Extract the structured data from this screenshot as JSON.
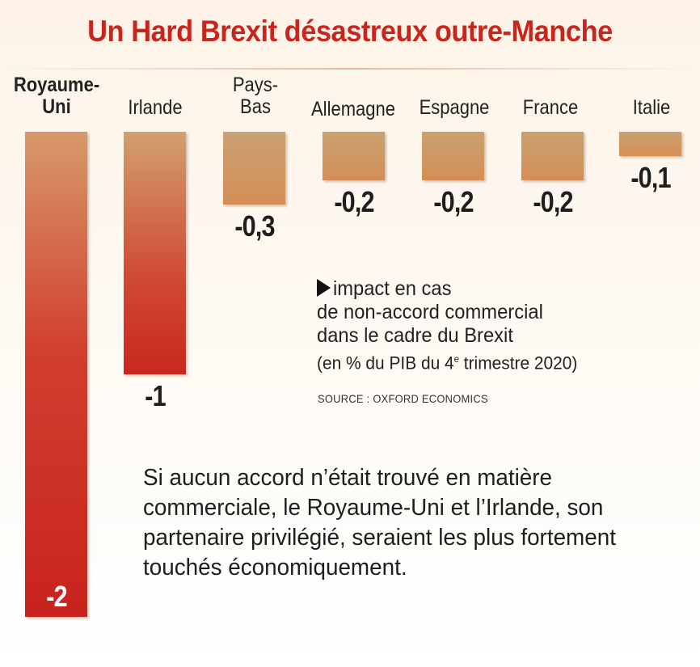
{
  "chart_data": {
    "type": "bar",
    "title": "Un Hard Brexit désastreux outre-Manche",
    "categories": [
      "Royaume-Uni",
      "Irlande",
      "Pays-Bas",
      "Allemagne",
      "Espagne",
      "France",
      "Italie"
    ],
    "category_lines": [
      [
        "Royaume-",
        "Uni"
      ],
      [
        "Irlande"
      ],
      [
        "Pays-",
        "Bas"
      ],
      [
        "Allemagne"
      ],
      [
        "Espagne"
      ],
      [
        "France"
      ],
      [
        "Italie"
      ]
    ],
    "values": [
      -2,
      -1,
      -0.3,
      -0.2,
      -0.2,
      -0.2,
      -0.1
    ],
    "value_labels": [
      "-2",
      "-1",
      "-0,3",
      "-0,2",
      "-0,2",
      "-0,2",
      "-0,1"
    ],
    "ylim": [
      -2,
      0
    ],
    "legend": {
      "marker": "▶",
      "line1": "impact en cas",
      "line2": "de non-accord commercial",
      "line3": "dans le cadre du Brexit",
      "line4_prefix": "(en % du PIB du 4",
      "line4_sup": "e",
      "line4_suffix": " trimestre 2020)"
    },
    "source": "SOURCE : OXFORD ECONOMICS",
    "note": "Si aucun accord n’était trouvé en matière commerciale, le Royaume-Uni et l’Irlande, son partenaire privilégié, seraient les plus fortement touchés économiquement.",
    "colors": {
      "title": "#c8251d",
      "bar_top": "#d2a06f",
      "bar_bottom": "#c8231d"
    }
  }
}
